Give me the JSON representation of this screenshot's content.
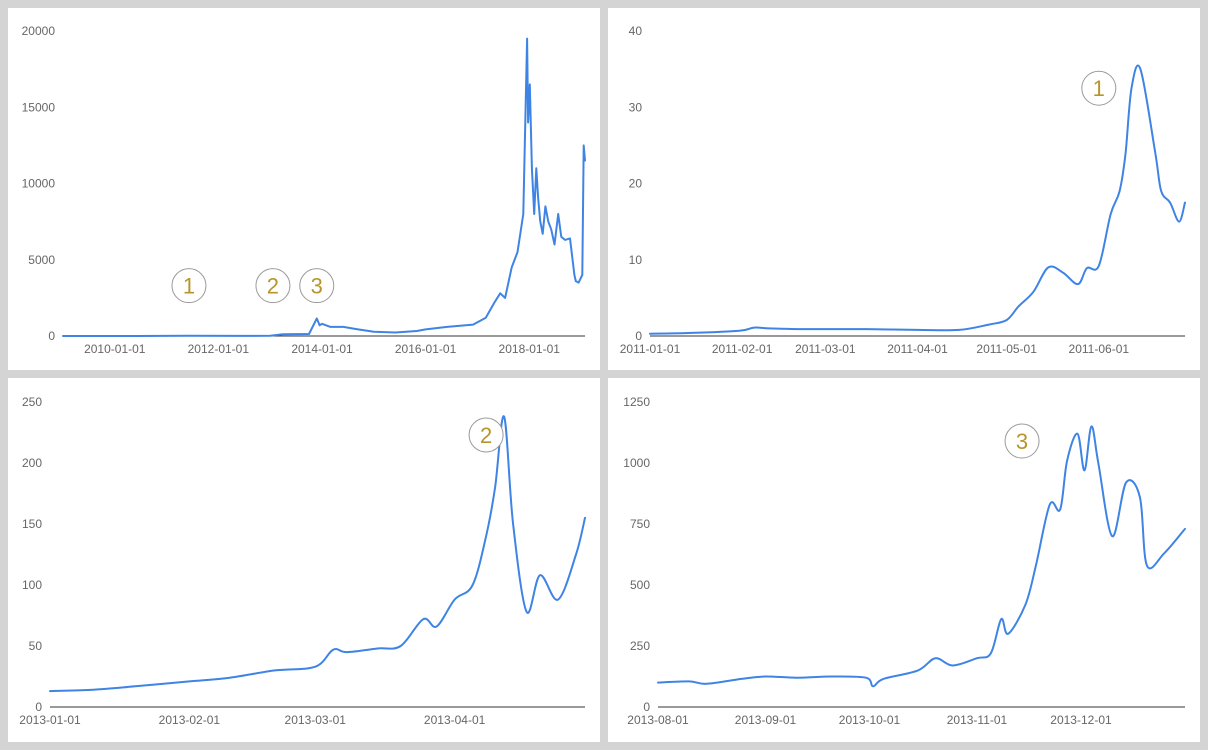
{
  "colors": {
    "line": "#3f84e5",
    "marker_text": "#b8952a",
    "marker_ring": "#999999",
    "axis": "#333333",
    "tick_text": "#666666",
    "background": "#d4d4d4"
  },
  "chart_data": [
    {
      "type": "line",
      "title": "",
      "xlabel": "",
      "ylabel": "",
      "x_ticks": [
        "2010-01-01",
        "2012-01-01",
        "2014-01-01",
        "2016-01-01",
        "2018-01-01"
      ],
      "y_ticks": [
        "0",
        "5000",
        "10000",
        "15000",
        "20000"
      ],
      "ylim": [
        0,
        20000
      ],
      "xlim": [
        "2009-01-01",
        "2019-01-29"
      ],
      "grid": false,
      "markers": [
        {
          "label": "1",
          "x": "2011-06-08",
          "y": 3300
        },
        {
          "label": "2",
          "x": "2013-01-20",
          "y": 3300
        },
        {
          "label": "3",
          "x": "2013-11-25",
          "y": 3300
        }
      ],
      "series": [
        {
          "x": [
            "2009-01-01",
            "2010-06-01",
            "2011-06-01",
            "2012-06-01",
            "2013-01-01",
            "2013-04-01",
            "2013-10-01",
            "2013-11-25",
            "2013-12-15",
            "2014-01-01",
            "2014-03-01",
            "2014-06-01",
            "2014-09-01",
            "2015-01-01",
            "2015-06-01",
            "2015-11-01",
            "2016-01-01",
            "2016-06-01",
            "2016-12-01",
            "2017-03-01",
            "2017-05-01",
            "2017-06-10",
            "2017-07-15",
            "2017-08-30",
            "2017-10-10",
            "2017-11-20",
            "2017-12-17",
            "2017-12-24",
            "2018-01-05",
            "2018-01-20",
            "2018-02-05",
            "2018-02-20",
            "2018-03-05",
            "2018-03-20",
            "2018-04-06",
            "2018-04-25",
            "2018-05-15",
            "2018-06-05",
            "2018-06-28",
            "2018-07-24",
            "2018-08-15",
            "2018-09-10",
            "2018-10-15",
            "2018-11-15",
            "2018-11-25",
            "2018-12-15",
            "2019-01-10",
            "2019-01-20",
            "2019-01-29"
          ],
          "y": [
            0,
            0,
            20,
            8,
            13,
            110,
            130,
            1150,
            700,
            800,
            600,
            600,
            450,
            280,
            230,
            330,
            430,
            600,
            750,
            1200,
            2200,
            2800,
            2500,
            4500,
            5500,
            8000,
            19500,
            14000,
            16500,
            11000,
            8000,
            11000,
            9000,
            7500,
            6700,
            8500,
            7500,
            7000,
            6000,
            8000,
            6500,
            6300,
            6400,
            4000,
            3600,
            3500,
            4000,
            12500,
            11500
          ]
        }
      ]
    },
    {
      "type": "line",
      "title": "",
      "xlabel": "",
      "ylabel": "",
      "x_ticks": [
        "2011-01-01",
        "2011-02-01",
        "2011-03-01",
        "2011-04-01",
        "2011-05-01",
        "2011-06-01"
      ],
      "y_ticks": [
        "0",
        "10",
        "20",
        "30",
        "40"
      ],
      "ylim": [
        0,
        40
      ],
      "xlim": [
        "2011-01-01",
        "2011-06-30"
      ],
      "grid": false,
      "markers": [
        {
          "label": "1",
          "x": "2011-06-01",
          "y": 32.5
        }
      ],
      "series": [
        {
          "x": [
            "2011-01-01",
            "2011-01-15",
            "2011-01-31",
            "2011-02-05",
            "2011-02-10",
            "2011-02-20",
            "2011-03-01",
            "2011-03-15",
            "2011-04-01",
            "2011-04-15",
            "2011-04-25",
            "2011-05-01",
            "2011-05-05",
            "2011-05-10",
            "2011-05-15",
            "2011-05-20",
            "2011-05-25",
            "2011-05-28",
            "2011-06-01",
            "2011-06-05",
            "2011-06-08",
            "2011-06-10",
            "2011-06-12",
            "2011-06-15",
            "2011-06-20",
            "2011-06-22",
            "2011-06-25",
            "2011-06-28",
            "2011-06-30"
          ],
          "y": [
            0.3,
            0.4,
            0.7,
            1.1,
            1.0,
            0.9,
            0.9,
            0.9,
            0.8,
            0.8,
            1.5,
            2.1,
            3.9,
            5.8,
            9.0,
            8.3,
            6.8,
            8.9,
            9.2,
            16.0,
            19.0,
            24.0,
            32.5,
            35.0,
            24.0,
            19.0,
            17.5,
            15.0,
            17.5
          ]
        }
      ]
    },
    {
      "type": "line",
      "title": "",
      "xlabel": "",
      "ylabel": "",
      "x_ticks": [
        "2013-01-01",
        "2013-02-01",
        "2013-03-01",
        "2013-04-01"
      ],
      "y_ticks": [
        "0",
        "50",
        "100",
        "150",
        "200",
        "250"
      ],
      "ylim": [
        0,
        250
      ],
      "xlim": [
        "2013-01-01",
        "2013-04-30"
      ],
      "grid": false,
      "markers": [
        {
          "label": "2",
          "x": "2013-04-08",
          "y": 223
        }
      ],
      "series": [
        {
          "x": [
            "2013-01-01",
            "2013-01-10",
            "2013-01-20",
            "2013-02-01",
            "2013-02-10",
            "2013-02-20",
            "2013-03-01",
            "2013-03-05",
            "2013-03-08",
            "2013-03-15",
            "2013-03-20",
            "2013-03-25",
            "2013-03-28",
            "2013-04-01",
            "2013-04-05",
            "2013-04-08",
            "2013-04-10",
            "2013-04-12",
            "2013-04-14",
            "2013-04-17",
            "2013-04-20",
            "2013-04-24",
            "2013-04-28",
            "2013-04-30"
          ],
          "y": [
            13,
            14,
            17,
            21,
            24,
            30,
            33,
            47,
            45,
            48,
            50,
            72,
            66,
            88,
            100,
            140,
            180,
            238,
            150,
            78,
            108,
            88,
            125,
            155
          ]
        }
      ]
    },
    {
      "type": "line",
      "title": "",
      "xlabel": "",
      "ylabel": "",
      "x_ticks": [
        "2013-08-01",
        "2013-09-01",
        "2013-10-01",
        "2013-11-01",
        "2013-12-01"
      ],
      "y_ticks": [
        "0",
        "250",
        "500",
        "750",
        "1000",
        "1250"
      ],
      "ylim": [
        0,
        1250
      ],
      "xlim": [
        "2013-08-01",
        "2013-12-31"
      ],
      "grid": false,
      "markers": [
        {
          "label": "3",
          "x": "2013-11-14",
          "y": 1090
        }
      ],
      "series": [
        {
          "x": [
            "2013-08-01",
            "2013-08-10",
            "2013-08-15",
            "2013-08-25",
            "2013-09-01",
            "2013-09-10",
            "2013-09-20",
            "2013-09-30",
            "2013-10-02",
            "2013-10-05",
            "2013-10-15",
            "2013-10-20",
            "2013-10-25",
            "2013-11-01",
            "2013-11-05",
            "2013-11-08",
            "2013-11-10",
            "2013-11-15",
            "2013-11-18",
            "2013-11-22",
            "2013-11-25",
            "2013-11-27",
            "2013-11-30",
            "2013-12-02",
            "2013-12-04",
            "2013-12-06",
            "2013-12-10",
            "2013-12-14",
            "2013-12-18",
            "2013-12-20",
            "2013-12-25",
            "2013-12-31"
          ],
          "y": [
            100,
            105,
            95,
            115,
            125,
            120,
            125,
            120,
            85,
            115,
            150,
            200,
            170,
            200,
            220,
            360,
            300,
            420,
            580,
            830,
            810,
            1010,
            1120,
            970,
            1150,
            1000,
            700,
            920,
            860,
            580,
            630,
            730
          ]
        }
      ]
    }
  ]
}
